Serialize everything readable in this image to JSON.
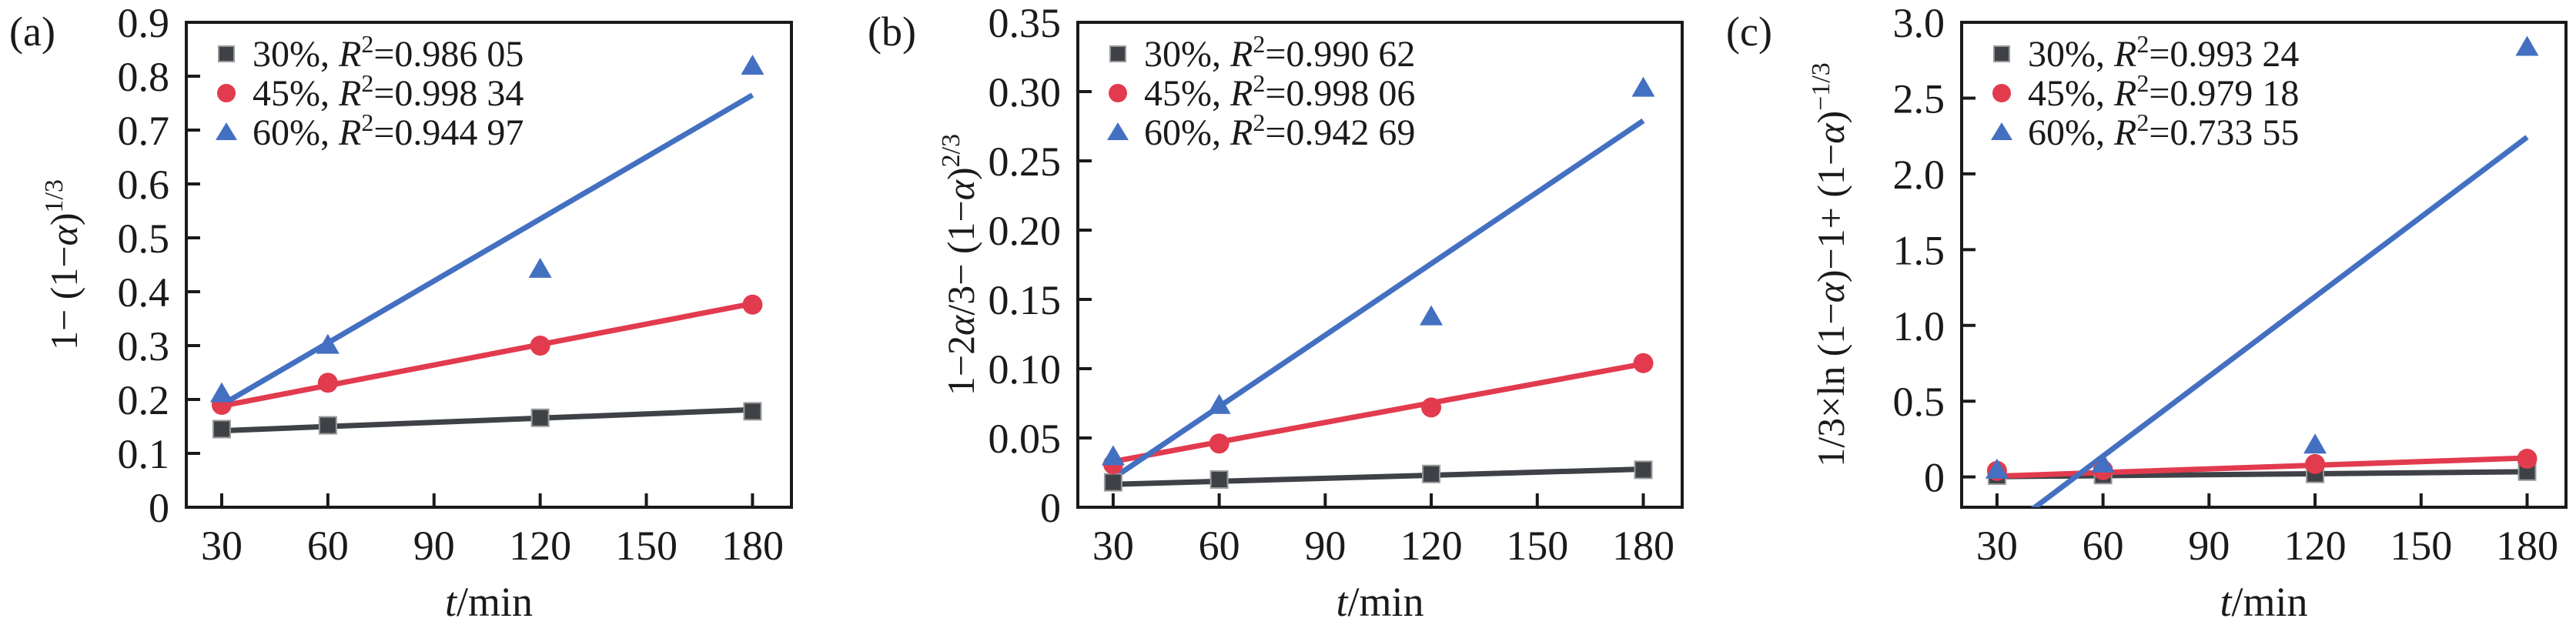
{
  "figure": {
    "background": "#ffffff",
    "axis_color": "#1a1a1a",
    "marker_edge_color": "#9a9a9a"
  },
  "chart_data": [
    {
      "type": "scatter",
      "panel_label": "(a)",
      "xlabel_parts": [
        {
          "t": "t",
          "i": true
        },
        {
          "t": "/min"
        }
      ],
      "ylabel_parts": [
        {
          "t": "1− (1−"
        },
        {
          "t": "α",
          "i": true
        },
        {
          "t": ")"
        },
        {
          "t": "1/3",
          "sup": true
        }
      ],
      "xlim": [
        20,
        191
      ],
      "ylim": [
        0,
        0.9
      ],
      "xticks": {
        "values": [
          30,
          60,
          90,
          120,
          150,
          180
        ],
        "labels": [
          "30",
          "60",
          "90",
          "120",
          "150",
          "180"
        ]
      },
      "yticks": {
        "values": [
          0,
          0.1,
          0.2,
          0.3,
          0.4,
          0.5,
          0.6,
          0.7,
          0.8,
          0.9
        ],
        "labels": [
          "0",
          "0.1",
          "0.2",
          "0.3",
          "0.4",
          "0.5",
          "0.6",
          "0.7",
          "0.8",
          "0.9"
        ]
      },
      "legend_position": "top-left",
      "grid": false,
      "series": [
        {
          "name": "30%",
          "r2": "0.986 05",
          "color": "#3e4247",
          "marker": "square",
          "points": [
            [
              30,
              0.145
            ],
            [
              60,
              0.152
            ],
            [
              120,
              0.166
            ],
            [
              180,
              0.178
            ]
          ],
          "fit": [
            [
              30,
              0.142
            ],
            [
              180,
              0.181
            ]
          ]
        },
        {
          "name": "45%",
          "r2": "0.998 34",
          "color": "#e23b4e",
          "marker": "circle",
          "points": [
            [
              30,
              0.19
            ],
            [
              60,
              0.231
            ],
            [
              120,
              0.3
            ],
            [
              180,
              0.376
            ]
          ],
          "fit": [
            [
              30,
              0.188
            ],
            [
              180,
              0.378
            ]
          ]
        },
        {
          "name": "60%",
          "r2": "0.944 97",
          "color": "#4470c2",
          "marker": "triangle",
          "points": [
            [
              30,
              0.212
            ],
            [
              60,
              0.302
            ],
            [
              120,
              0.443
            ],
            [
              180,
              0.82
            ]
          ],
          "fit": [
            [
              30,
              0.19
            ],
            [
              180,
              0.765
            ]
          ]
        }
      ]
    },
    {
      "type": "scatter",
      "panel_label": "(b)",
      "xlabel_parts": [
        {
          "t": "t",
          "i": true
        },
        {
          "t": "/min"
        }
      ],
      "ylabel_parts": [
        {
          "t": "1−2"
        },
        {
          "t": "α",
          "i": true
        },
        {
          "t": "/3− (1−"
        },
        {
          "t": "α",
          "i": true
        },
        {
          "t": ")"
        },
        {
          "t": "2/3",
          "sup": true
        }
      ],
      "xlim": [
        20,
        191
      ],
      "ylim": [
        0,
        0.35
      ],
      "xticks": {
        "values": [
          30,
          60,
          90,
          120,
          150,
          180
        ],
        "labels": [
          "30",
          "60",
          "90",
          "120",
          "150",
          "180"
        ]
      },
      "yticks": {
        "values": [
          0,
          0.05,
          0.1,
          0.15,
          0.2,
          0.25,
          0.3,
          0.35
        ],
        "labels": [
          "0",
          "0.05",
          "0.10",
          "0.15",
          "0.20",
          "0.25",
          "0.30",
          "0.35"
        ]
      },
      "legend_position": "top-left",
      "grid": false,
      "series": [
        {
          "name": "30%",
          "r2": "0.990 62",
          "color": "#3e4247",
          "marker": "square",
          "points": [
            [
              30,
              0.018
            ],
            [
              60,
              0.02
            ],
            [
              120,
              0.024
            ],
            [
              180,
              0.027
            ]
          ],
          "fit": [
            [
              30,
              0.0165
            ],
            [
              180,
              0.0275
            ]
          ]
        },
        {
          "name": "45%",
          "r2": "0.998 06",
          "color": "#e23b4e",
          "marker": "circle",
          "points": [
            [
              30,
              0.031
            ],
            [
              60,
              0.046
            ],
            [
              120,
              0.072
            ],
            [
              180,
              0.104
            ]
          ],
          "fit": [
            [
              30,
              0.033
            ],
            [
              180,
              0.1035
            ]
          ]
        },
        {
          "name": "60%",
          "r2": "0.942 69",
          "color": "#4470c2",
          "marker": "triangle",
          "points": [
            [
              30,
              0.037
            ],
            [
              60,
              0.074
            ],
            [
              120,
              0.138
            ],
            [
              180,
              0.303
            ]
          ],
          "fit": [
            [
              30,
              0.021
            ],
            [
              180,
              0.279
            ]
          ]
        }
      ]
    },
    {
      "type": "scatter",
      "panel_label": "(c)",
      "xlabel_parts": [
        {
          "t": "t",
          "i": true
        },
        {
          "t": "/min"
        }
      ],
      "ylabel_parts": [
        {
          "t": "1/3×ln (1−"
        },
        {
          "t": "α",
          "i": true
        },
        {
          "t": ")−1+ (1−"
        },
        {
          "t": "α",
          "i": true
        },
        {
          "t": ")"
        },
        {
          "t": "−1/3",
          "sup": true
        }
      ],
      "xlim": [
        20,
        191
      ],
      "ylim": [
        -0.2,
        3.0
      ],
      "xticks": {
        "values": [
          30,
          60,
          90,
          120,
          150,
          180
        ],
        "labels": [
          "30",
          "60",
          "90",
          "120",
          "150",
          "180"
        ]
      },
      "yticks": {
        "values": [
          0,
          0.5,
          1.0,
          1.5,
          2.0,
          2.5,
          3.0
        ],
        "labels": [
          "0",
          "0.5",
          "1.0",
          "1.5",
          "2.0",
          "2.5",
          "3.0"
        ]
      },
      "legend_position": "top-left",
      "grid": false,
      "series": [
        {
          "name": "30%",
          "r2": "0.993 24",
          "color": "#3e4247",
          "marker": "square",
          "points": [
            [
              30,
              0.008
            ],
            [
              60,
              0.012
            ],
            [
              120,
              0.02
            ],
            [
              180,
              0.035
            ]
          ],
          "fit": [
            [
              30,
              0.002
            ],
            [
              180,
              0.034
            ]
          ]
        },
        {
          "name": "45%",
          "r2": "0.979 18",
          "color": "#e23b4e",
          "marker": "circle",
          "points": [
            [
              30,
              0.04
            ],
            [
              60,
              0.045
            ],
            [
              120,
              0.085
            ],
            [
              180,
              0.12
            ]
          ],
          "fit": [
            [
              30,
              0.005
            ],
            [
              180,
              0.125
            ]
          ]
        },
        {
          "name": "60%",
          "r2": "0.733 55",
          "color": "#4470c2",
          "marker": "triangle",
          "points": [
            [
              30,
              0.05
            ],
            [
              60,
              0.09
            ],
            [
              120,
              0.215
            ],
            [
              180,
              2.84
            ]
          ],
          "fit": [
            [
              30,
              -0.389
            ],
            [
              180,
              2.242
            ]
          ]
        }
      ]
    }
  ]
}
